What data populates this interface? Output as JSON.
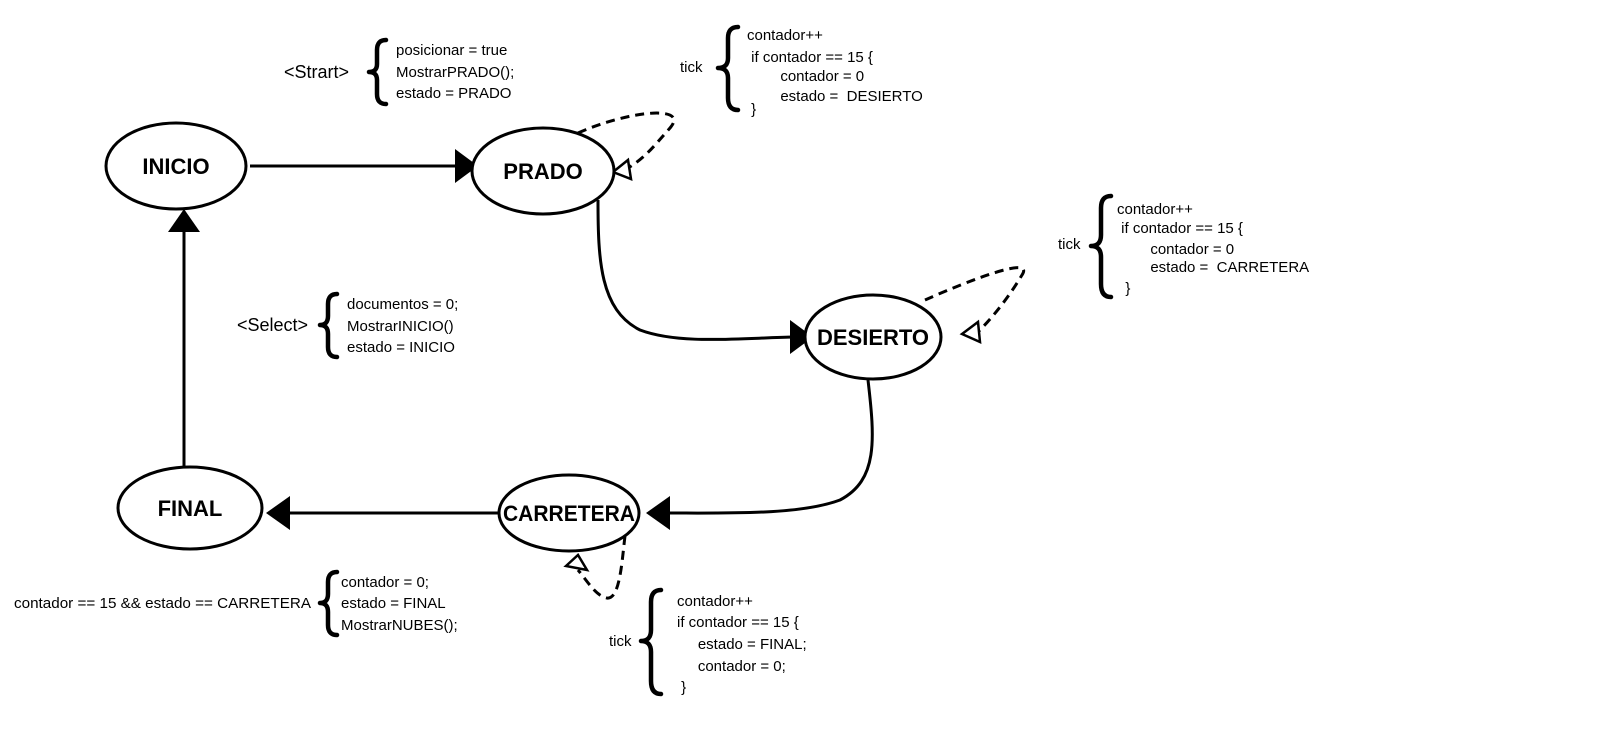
{
  "states": [
    {
      "id": "inicio",
      "label": "INICIO"
    },
    {
      "id": "prado",
      "label": "PRADO"
    },
    {
      "id": "desierto",
      "label": "DESIERTO"
    },
    {
      "id": "carretera",
      "label": "CARRETERA"
    },
    {
      "id": "final",
      "label": "FINAL"
    }
  ],
  "notes": {
    "start": {
      "trigger": "<Strart>",
      "lines": [
        "posicionar = true",
        "MostrarPRADO();",
        "estado = PRADO"
      ]
    },
    "prado_tick": {
      "trigger": "tick",
      "lines": [
        "contador++",
        " if contador == 15 {",
        "        contador = 0",
        "        estado =  DESIERTO",
        " }"
      ]
    },
    "desierto_tick": {
      "trigger": "tick",
      "lines": [
        "contador++",
        " if contador == 15 {",
        "        contador = 0",
        "        estado =  CARRETERA",
        "  }"
      ]
    },
    "select": {
      "trigger": "<Select>",
      "lines": [
        "documentos = 0;",
        "MostrarINICIO()",
        "estado = INICIO"
      ]
    },
    "final_cond": {
      "trigger": "contador == 15 && estado == CARRETERA",
      "lines": [
        "contador = 0;",
        "estado = FINAL",
        "MostrarNUBES();"
      ]
    },
    "carretera_tick": {
      "trigger": "tick",
      "lines": [
        "contador++",
        "if contador == 15 {",
        "     estado = FINAL;",
        "     contador = 0;",
        " }"
      ]
    }
  }
}
